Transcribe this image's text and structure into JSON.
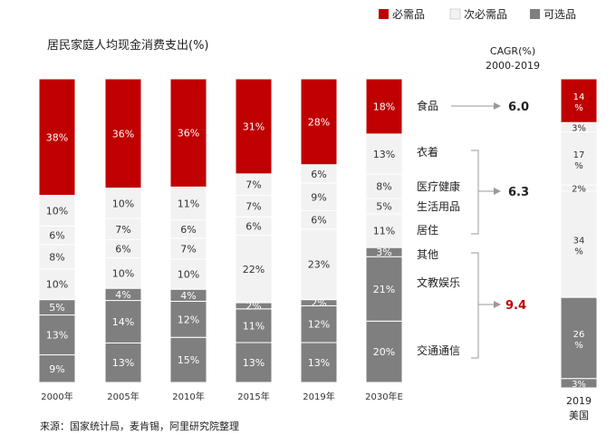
{
  "chart_data": {
    "type": "stacked-bar",
    "title": "居民家庭人均现金消费支出(%)",
    "legend": [
      {
        "name": "必需品",
        "color": "#c00000"
      },
      {
        "name": "次必需品",
        "color": "#f2f2f2"
      },
      {
        "name": "可选品",
        "color": "#7f7f7f"
      }
    ],
    "cagr_title": [
      "CAGR(%)",
      "2000-2019"
    ],
    "categories": [
      "2000年",
      "2005年",
      "2010年",
      "2015年",
      "2019年",
      "2030年E"
    ],
    "segments": [
      {
        "group": "optional",
        "values": [
          9,
          13,
          15,
          13,
          13,
          20
        ]
      },
      {
        "group": "optional",
        "values": [
          13,
          14,
          12,
          11,
          12,
          21
        ]
      },
      {
        "group": "optional",
        "values": [
          5,
          4,
          4,
          2,
          2,
          3
        ]
      },
      {
        "group": "secondary",
        "values": [
          10,
          10,
          10,
          22,
          23,
          11
        ]
      },
      {
        "group": "secondary",
        "values": [
          8,
          6,
          7,
          6,
          6,
          5
        ]
      },
      {
        "group": "secondary",
        "values": [
          6,
          7,
          6,
          7,
          9,
          8
        ]
      },
      {
        "group": "secondary",
        "values": [
          10,
          10,
          11,
          7,
          6,
          13
        ]
      },
      {
        "group": "necessity",
        "values": [
          38,
          36,
          36,
          31,
          28,
          18
        ]
      }
    ],
    "us_bar": {
      "label_year": "2019",
      "label_country": "美国",
      "segments": [
        {
          "group": "optional",
          "value": 3,
          "label": "3%"
        },
        {
          "group": "optional",
          "value": 26,
          "label": "26 %"
        },
        {
          "group": "secondary",
          "value": 34,
          "label": "34 %"
        },
        {
          "group": "secondary",
          "value": 2,
          "label": "2%"
        },
        {
          "group": "secondary",
          "value": 17,
          "label": "17 %"
        },
        {
          "group": "secondary",
          "value": 3,
          "label": "3%"
        },
        {
          "group": "necessity",
          "value": 14,
          "label": "14 %"
        }
      ]
    },
    "categories_labels": {
      "food": "食品",
      "clothing": "衣着",
      "medical": "医疗健康",
      "daily": "生活用品",
      "housing": "居住",
      "other": "其他",
      "education": "文教娱乐",
      "transport": "交通通信"
    },
    "cagr": {
      "necessity": "6.0",
      "secondary": "6.3",
      "optional": "9.4"
    }
  },
  "source": "来源：国家统计局，麦肯锡，阿里研究院整理"
}
